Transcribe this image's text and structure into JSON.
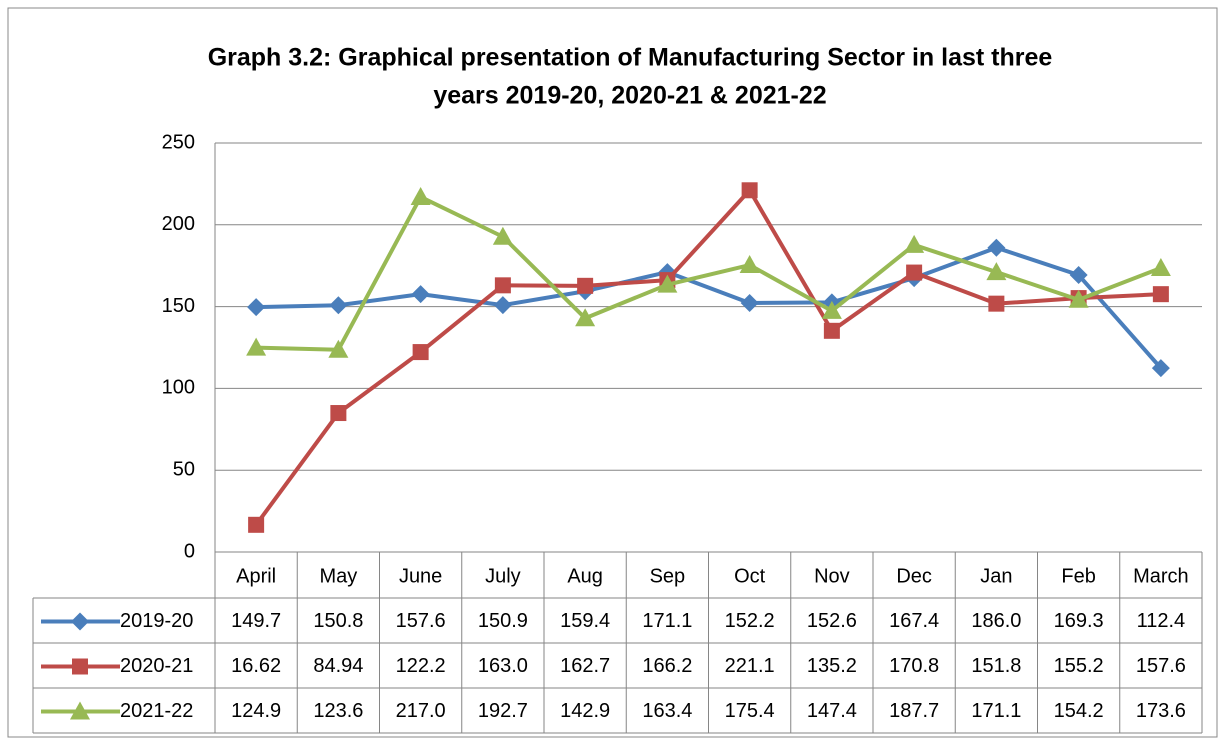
{
  "chart_data": {
    "type": "line",
    "title": [
      "Graph 3.2: Graphical presentation of Manufacturing Sector in last three",
      "years  2019-20, 2020-21 & 2021-22"
    ],
    "categories": [
      "April",
      "May",
      "June",
      "July",
      "Aug",
      "Sep",
      "Oct",
      "Nov",
      "Dec",
      "Jan",
      "Feb",
      "March"
    ],
    "series": [
      {
        "name": "2019-20",
        "color": "#4a7ebb",
        "marker": "diamond",
        "values": [
          149.7,
          150.8,
          157.6,
          150.9,
          159.4,
          171.1,
          152.2,
          152.6,
          167.4,
          186.0,
          169.3,
          112.4
        ],
        "value_labels": [
          "149.7",
          "150.8",
          "157.6",
          "150.9",
          "159.4",
          "171.1",
          "152.2",
          "152.6",
          "167.4",
          "186.0",
          "169.3",
          "112.4"
        ]
      },
      {
        "name": "2020-21",
        "color": "#be4b48",
        "marker": "square",
        "values": [
          16.62,
          84.94,
          122.2,
          163.0,
          162.7,
          166.2,
          221.1,
          135.2,
          170.8,
          151.8,
          155.2,
          157.6
        ],
        "value_labels": [
          "16.62",
          "84.94",
          "122.2",
          "163.0",
          "162.7",
          "166.2",
          "221.1",
          "135.2",
          "170.8",
          "151.8",
          "155.2",
          "157.6"
        ]
      },
      {
        "name": "2021-22",
        "color": "#98b954",
        "marker": "triangle",
        "values": [
          124.9,
          123.6,
          217.0,
          192.7,
          142.9,
          163.4,
          175.4,
          147.4,
          187.7,
          171.1,
          154.2,
          173.6
        ],
        "value_labels": [
          "124.9",
          "123.6",
          "217.0",
          "192.7",
          "142.9",
          "163.4",
          "175.4",
          "147.4",
          "187.7",
          "171.1",
          "154.2",
          "173.6"
        ]
      }
    ],
    "ylim": [
      0,
      250
    ],
    "yticks": [
      0,
      50,
      100,
      150,
      200,
      250
    ],
    "grid": true
  }
}
